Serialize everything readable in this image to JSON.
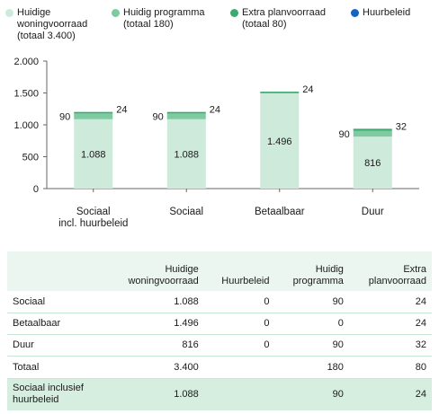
{
  "legend": [
    {
      "label": "Huidige\nwoningvoorraad\n(totaal 3.400)",
      "color": "#cdeadb"
    },
    {
      "label": "Huidig programma\n(totaal 180)",
      "color": "#7ecba1"
    },
    {
      "label": "Extra planvoorraad\n(totaal 80)",
      "color": "#3aaa70"
    },
    {
      "label": "Huurbeleid",
      "color": "#1565c0"
    }
  ],
  "chart_data": {
    "type": "bar",
    "stacked": true,
    "categories": [
      "Sociaal\nincl. huurbeleid",
      "Sociaal",
      "Betaalbaar",
      "Duur"
    ],
    "series": [
      {
        "name": "Huidige woningvoorraad",
        "values": [
          1088,
          1088,
          1496,
          816
        ],
        "labels": [
          "1.088",
          "1.088",
          "1.496",
          "816"
        ],
        "color": "#cdeadb"
      },
      {
        "name": "Huidig programma",
        "values": [
          90,
          90,
          0,
          90
        ],
        "labels": [
          "90",
          "90",
          "",
          "90"
        ],
        "color": "#7ecba1"
      },
      {
        "name": "Extra planvoorraad",
        "values": [
          24,
          24,
          24,
          32
        ],
        "labels": [
          "24",
          "24",
          "24",
          "32"
        ],
        "color": "#3aaa70"
      },
      {
        "name": "Huurbeleid",
        "values": [
          0,
          0,
          0,
          0
        ],
        "labels": [
          "",
          "",
          "",
          ""
        ],
        "color": "#1565c0"
      }
    ],
    "yticks": [
      0,
      500,
      1000,
      1500,
      2000
    ],
    "ytick_labels": [
      "0",
      "500",
      "1.000",
      "1.500",
      "2.000"
    ],
    "ylim": [
      0,
      2000
    ],
    "grid": false,
    "legend_position": "top"
  },
  "table": {
    "headers": [
      "",
      "Huidige\nwoningvoorraad",
      "Huurbeleid",
      "Huidig\nprogramma",
      "Extra\nplanvoorraad"
    ],
    "rows": [
      [
        "Sociaal",
        "1.088",
        "0",
        "90",
        "24"
      ],
      [
        "Betaalbaar",
        "1.496",
        "0",
        "0",
        "24"
      ],
      [
        "Duur",
        "816",
        "0",
        "90",
        "32"
      ]
    ],
    "total": [
      "Totaal",
      "3.400",
      "",
      "180",
      "80"
    ],
    "social_incl": [
      "Sociaal inclusief\nhuurbeleid",
      "1.088",
      "",
      "90",
      "24"
    ]
  }
}
